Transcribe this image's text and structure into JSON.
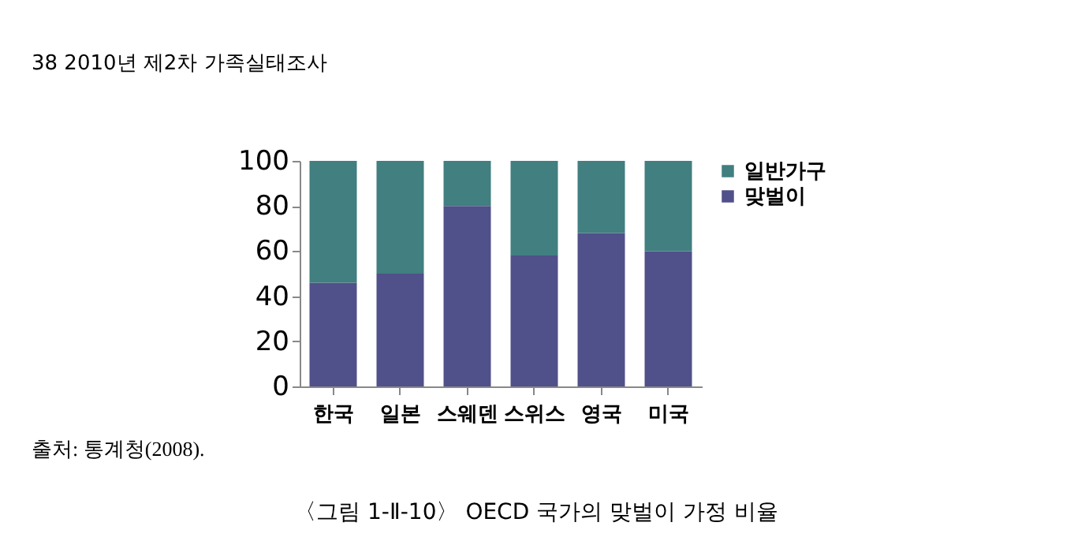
{
  "chart_data": {
    "type": "bar",
    "stacked": true,
    "title": "〈그림 1-Ⅱ-10〉 OECD 국가의 맞벌이 가정 비율",
    "annotations": [
      "38  2010년 제2차 가족실태조사",
      "출처: 통계청(2008)."
    ],
    "categories": [
      "한국",
      "일본",
      "스웨덴",
      "스위스",
      "영국",
      "미국"
    ],
    "series": [
      {
        "name": "맞벌이",
        "color": "#50508a",
        "values": [
          46,
          50,
          80,
          58,
          68,
          60
        ]
      },
      {
        "name": "일반가구",
        "color": "#417f80",
        "values": [
          54,
          50,
          20,
          42,
          32,
          40
        ]
      }
    ],
    "ylim": [
      0,
      100
    ],
    "yticks": [
      0,
      20,
      40,
      60,
      80,
      100
    ],
    "grid": false,
    "legend": "right"
  }
}
